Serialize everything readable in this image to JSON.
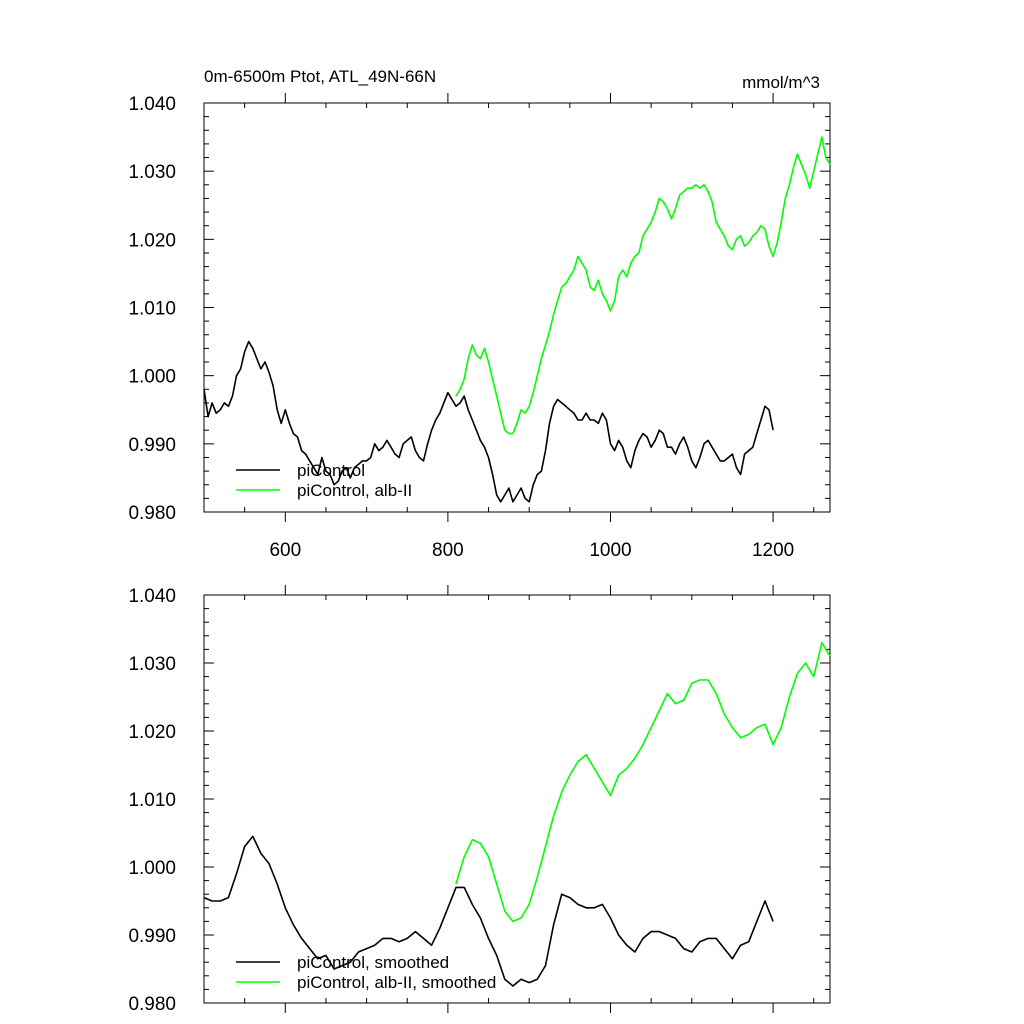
{
  "chart_data": [
    {
      "type": "line",
      "title": "0m-6500m Ptot, ATL_49N-66N",
      "units": "mmol/m^3",
      "xlim": [
        500,
        1270
      ],
      "ylim": [
        0.98,
        1.04
      ],
      "x_ticks": [
        600,
        800,
        1000,
        1200
      ],
      "x_tick_labels": [
        "600",
        "800",
        "1000",
        "1200"
      ],
      "y_ticks": [
        0.98,
        0.99,
        1.0,
        1.01,
        1.02,
        1.03,
        1.04
      ],
      "y_tick_labels": [
        "0.980",
        "0.990",
        "1.000",
        "1.010",
        "1.020",
        "1.030",
        "1.040"
      ],
      "grid": false,
      "legend_position": "bottom-left",
      "series": [
        {
          "name": "piControl",
          "color": "#000000",
          "x": [
            500,
            505,
            510,
            515,
            520,
            525,
            530,
            535,
            540,
            545,
            550,
            555,
            560,
            565,
            570,
            575,
            580,
            585,
            590,
            595,
            600,
            605,
            610,
            615,
            620,
            625,
            630,
            635,
            640,
            645,
            650,
            655,
            660,
            665,
            670,
            675,
            680,
            685,
            690,
            695,
            700,
            705,
            710,
            715,
            720,
            725,
            730,
            735,
            740,
            745,
            750,
            755,
            760,
            765,
            770,
            775,
            780,
            785,
            790,
            795,
            800,
            805,
            810,
            815,
            820,
            825,
            830,
            835,
            840,
            845,
            850,
            855,
            860,
            865,
            870,
            875,
            880,
            885,
            890,
            895,
            900,
            905,
            910,
            915,
            920,
            925,
            930,
            935,
            940,
            945,
            950,
            955,
            960,
            965,
            970,
            975,
            980,
            985,
            990,
            995,
            1000,
            1005,
            1010,
            1015,
            1020,
            1025,
            1030,
            1035,
            1040,
            1045,
            1050,
            1055,
            1060,
            1065,
            1070,
            1075,
            1080,
            1085,
            1090,
            1095,
            1100,
            1105,
            1110,
            1115,
            1120,
            1125,
            1130,
            1135,
            1140,
            1145,
            1150,
            1155,
            1160,
            1165,
            1170,
            1175,
            1180,
            1185,
            1190,
            1195,
            1200
          ],
          "values": [
            0.998,
            0.994,
            0.996,
            0.9945,
            0.995,
            0.996,
            0.9955,
            0.997,
            1.0,
            1.001,
            1.0035,
            1.005,
            1.004,
            1.0025,
            1.001,
            1.002,
            1.0005,
            0.9985,
            0.995,
            0.993,
            0.995,
            0.993,
            0.9915,
            0.991,
            0.989,
            0.9885,
            0.9875,
            0.9865,
            0.9855,
            0.988,
            0.986,
            0.9855,
            0.984,
            0.9845,
            0.986,
            0.9865,
            0.985,
            0.9865,
            0.987,
            0.9875,
            0.9875,
            0.988,
            0.99,
            0.989,
            0.9895,
            0.9905,
            0.9895,
            0.9885,
            0.988,
            0.99,
            0.9905,
            0.991,
            0.989,
            0.988,
            0.9875,
            0.99,
            0.992,
            0.9935,
            0.9945,
            0.996,
            0.9975,
            0.9965,
            0.9955,
            0.996,
            0.997,
            0.995,
            0.9935,
            0.992,
            0.9905,
            0.9895,
            0.988,
            0.9855,
            0.9825,
            0.9815,
            0.9825,
            0.9835,
            0.9815,
            0.9825,
            0.9835,
            0.982,
            0.9815,
            0.984,
            0.9855,
            0.986,
            0.989,
            0.993,
            0.9955,
            0.9965,
            0.996,
            0.9955,
            0.995,
            0.9945,
            0.9935,
            0.9935,
            0.9945,
            0.9935,
            0.9935,
            0.993,
            0.9945,
            0.9935,
            0.99,
            0.989,
            0.9905,
            0.9895,
            0.9875,
            0.9865,
            0.989,
            0.9905,
            0.9915,
            0.991,
            0.9895,
            0.9905,
            0.992,
            0.9915,
            0.9895,
            0.9895,
            0.9885,
            0.99,
            0.991,
            0.9895,
            0.9875,
            0.9865,
            0.988,
            0.99,
            0.9905,
            0.9895,
            0.9885,
            0.9875,
            0.9875,
            0.988,
            0.9885,
            0.9865,
            0.9855,
            0.9885,
            0.989,
            0.9895,
            0.9915,
            0.9935,
            0.9955,
            0.995,
            0.992
          ]
        },
        {
          "name": "piControl, alb-II",
          "color": "#00ff00",
          "x": [
            810,
            815,
            820,
            825,
            830,
            835,
            840,
            845,
            850,
            855,
            860,
            865,
            870,
            875,
            880,
            885,
            890,
            895,
            900,
            905,
            910,
            915,
            920,
            925,
            930,
            935,
            940,
            945,
            950,
            955,
            960,
            965,
            970,
            975,
            980,
            985,
            990,
            995,
            1000,
            1005,
            1010,
            1015,
            1020,
            1025,
            1030,
            1035,
            1040,
            1045,
            1050,
            1055,
            1060,
            1065,
            1070,
            1075,
            1080,
            1085,
            1090,
            1095,
            1100,
            1105,
            1110,
            1115,
            1120,
            1125,
            1130,
            1135,
            1140,
            1145,
            1150,
            1155,
            1160,
            1165,
            1170,
            1175,
            1180,
            1185,
            1190,
            1195,
            1200,
            1205,
            1210,
            1215,
            1220,
            1225,
            1230,
            1235,
            1240,
            1245,
            1250,
            1255,
            1260,
            1265,
            1270
          ],
          "values": [
            0.997,
            0.998,
            0.9995,
            1.0025,
            1.0045,
            1.003,
            1.0025,
            1.004,
            1.002,
            0.9995,
            0.997,
            0.9945,
            0.992,
            0.9915,
            0.9915,
            0.993,
            0.995,
            0.9945,
            0.9955,
            0.9975,
            1.0,
            1.0025,
            1.0045,
            1.0065,
            1.009,
            1.011,
            1.013,
            1.0135,
            1.0145,
            1.0155,
            1.0175,
            1.0165,
            1.0155,
            1.013,
            1.0125,
            1.014,
            1.012,
            1.011,
            1.0095,
            1.011,
            1.0145,
            1.0155,
            1.0145,
            1.0165,
            1.0175,
            1.018,
            1.0205,
            1.0215,
            1.0225,
            1.024,
            1.026,
            1.0255,
            1.0245,
            1.023,
            1.0245,
            1.0265,
            1.027,
            1.0275,
            1.0275,
            1.028,
            1.0275,
            1.028,
            1.027,
            1.0255,
            1.0225,
            1.0215,
            1.0205,
            1.019,
            1.0185,
            1.02,
            1.0205,
            1.019,
            1.0195,
            1.0205,
            1.021,
            1.022,
            1.0215,
            1.019,
            1.0175,
            1.0195,
            1.0225,
            1.026,
            1.028,
            1.0305,
            1.0325,
            1.031,
            1.0295,
            1.0275,
            1.03,
            1.0325,
            1.035,
            1.032,
            1.031
          ]
        }
      ]
    },
    {
      "type": "line",
      "xlim": [
        500,
        1270
      ],
      "ylim": [
        0.98,
        1.04
      ],
      "x_ticks": [
        600,
        800,
        1000,
        1200
      ],
      "y_ticks": [
        0.98,
        0.99,
        1.0,
        1.01,
        1.02,
        1.03,
        1.04
      ],
      "y_tick_labels": [
        "0.980",
        "0.990",
        "1.000",
        "1.010",
        "1.020",
        "1.030",
        "1.040"
      ],
      "grid": false,
      "legend_position": "bottom-left",
      "series": [
        {
          "name": "piControl, smoothed",
          "color": "#000000",
          "x": [
            500,
            510,
            520,
            530,
            540,
            550,
            560,
            570,
            580,
            590,
            600,
            610,
            620,
            630,
            640,
            650,
            660,
            670,
            680,
            690,
            700,
            710,
            720,
            730,
            740,
            750,
            760,
            770,
            780,
            790,
            800,
            810,
            820,
            830,
            840,
            850,
            860,
            870,
            880,
            890,
            900,
            910,
            920,
            930,
            940,
            950,
            960,
            970,
            980,
            990,
            1000,
            1010,
            1020,
            1030,
            1040,
            1050,
            1060,
            1070,
            1080,
            1090,
            1100,
            1110,
            1120,
            1130,
            1140,
            1150,
            1160,
            1170,
            1180,
            1190,
            1200
          ],
          "values": [
            0.9955,
            0.995,
            0.995,
            0.9955,
            0.999,
            1.003,
            1.0045,
            1.002,
            1.0005,
            0.9975,
            0.994,
            0.9915,
            0.9895,
            0.988,
            0.9865,
            0.987,
            0.985,
            0.9855,
            0.986,
            0.9875,
            0.988,
            0.9885,
            0.9895,
            0.9895,
            0.989,
            0.9895,
            0.9905,
            0.9895,
            0.9885,
            0.991,
            0.994,
            0.997,
            0.997,
            0.9945,
            0.9925,
            0.9895,
            0.987,
            0.9835,
            0.9825,
            0.9835,
            0.983,
            0.9835,
            0.9855,
            0.9915,
            0.996,
            0.9955,
            0.9945,
            0.994,
            0.994,
            0.9945,
            0.9925,
            0.99,
            0.9885,
            0.9875,
            0.9895,
            0.9905,
            0.9905,
            0.99,
            0.9895,
            0.988,
            0.9875,
            0.989,
            0.9895,
            0.9895,
            0.988,
            0.9865,
            0.9885,
            0.989,
            0.992,
            0.995,
            0.992
          ]
        },
        {
          "name": "piControl, alb-II, smoothed",
          "color": "#00ff00",
          "x": [
            810,
            820,
            830,
            840,
            850,
            860,
            870,
            880,
            890,
            900,
            910,
            920,
            930,
            940,
            950,
            960,
            970,
            980,
            990,
            1000,
            1010,
            1020,
            1030,
            1040,
            1050,
            1060,
            1070,
            1080,
            1090,
            1100,
            1110,
            1120,
            1130,
            1140,
            1150,
            1160,
            1170,
            1180,
            1190,
            1200,
            1210,
            1220,
            1230,
            1240,
            1250,
            1260,
            1270
          ],
          "values": [
            0.9975,
            1.0015,
            1.004,
            1.0035,
            1.0015,
            0.9975,
            0.9935,
            0.992,
            0.9925,
            0.9945,
            0.9985,
            1.003,
            1.0075,
            1.011,
            1.0135,
            1.0155,
            1.0165,
            1.0145,
            1.0125,
            1.0105,
            1.0135,
            1.0145,
            1.016,
            1.018,
            1.0205,
            1.023,
            1.0255,
            1.024,
            1.0245,
            1.027,
            1.0275,
            1.0275,
            1.0255,
            1.0225,
            1.0205,
            1.019,
            1.0195,
            1.0205,
            1.021,
            1.018,
            1.0205,
            1.025,
            1.0285,
            1.03,
            1.028,
            1.033,
            1.031
          ]
        }
      ]
    }
  ]
}
